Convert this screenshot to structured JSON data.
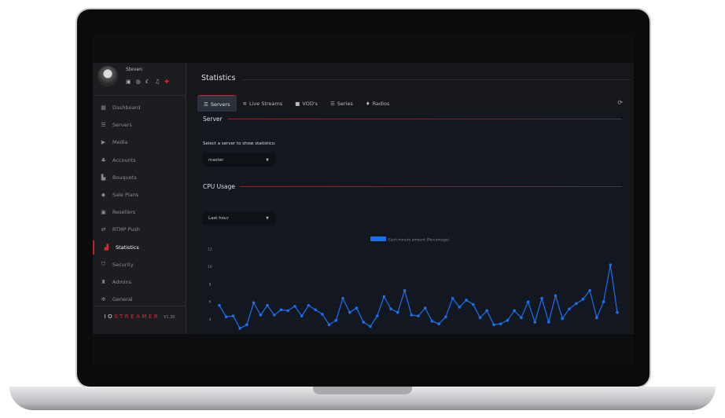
{
  "user": {
    "name": "Steven"
  },
  "header_icons": [
    "id-card-icon",
    "globe-icon",
    "moon-icon",
    "bell-icon",
    "pin-icon"
  ],
  "sidebar": {
    "items": [
      {
        "label": "Dashboard",
        "icon": "grid-icon"
      },
      {
        "label": "Servers",
        "icon": "server-icon"
      },
      {
        "label": "Media",
        "icon": "play-icon"
      },
      {
        "label": "Accounts",
        "icon": "users-icon"
      },
      {
        "label": "Bouquets",
        "icon": "boxes-icon"
      },
      {
        "label": "Sale Plans",
        "icon": "tags-icon"
      },
      {
        "label": "Resellers",
        "icon": "contact-icon"
      },
      {
        "label": "RTMP Push",
        "icon": "exchange-icon"
      },
      {
        "label": "Statistics",
        "icon": "chart-icon",
        "active": true
      },
      {
        "label": "Security",
        "icon": "shield-icon"
      },
      {
        "label": "Admins",
        "icon": "user-lock-icon"
      },
      {
        "label": "General",
        "icon": "gears-icon"
      }
    ]
  },
  "brand": {
    "io": "IO",
    "streamer": "STREAMER",
    "version": "V1.30"
  },
  "page": {
    "title": "Statistics"
  },
  "tabs": [
    {
      "label": "Servers",
      "icon": "list-icon",
      "active": true
    },
    {
      "label": "Live Streams",
      "icon": "rss-icon"
    },
    {
      "label": "VOD's",
      "icon": "video-icon"
    },
    {
      "label": "Series",
      "icon": "list-icon"
    },
    {
      "label": "Radios",
      "icon": "microphone-icon"
    }
  ],
  "server_section": {
    "title": "Server",
    "prompt": "Select a server to show statistics:",
    "selected": "master"
  },
  "cpu_section": {
    "title": "CPU Usage",
    "range": "Last hour"
  },
  "colors": {
    "accent": "#e0252b",
    "series": "#1a6ff0"
  },
  "chart_data": {
    "type": "line",
    "legend": "Each minute amount (Percentage)",
    "legend_position": "top",
    "ylim": [
      2,
      12
    ],
    "yticks": [
      2,
      4,
      6,
      8,
      10,
      12
    ],
    "grid": true,
    "series": [
      {
        "name": "Each minute amount (Percentage)",
        "values": [
          5.6,
          4.3,
          4.4,
          3.0,
          3.4,
          5.9,
          4.5,
          5.6,
          4.5,
          5.1,
          5.0,
          5.5,
          4.4,
          5.6,
          5.1,
          4.6,
          3.4,
          3.9,
          6.4,
          4.8,
          5.3,
          3.7,
          3.2,
          4.4,
          6.6,
          5.2,
          4.8,
          7.3,
          4.5,
          4.4,
          5.3,
          3.8,
          3.5,
          4.3,
          6.4,
          5.4,
          6.2,
          5.7,
          4.2,
          5.0,
          3.4,
          3.5,
          3.9,
          5.0,
          4.2,
          6.0,
          3.7,
          6.4,
          3.7,
          6.7,
          4.1,
          5.2,
          5.8,
          6.3,
          7.3,
          4.2,
          6.0,
          10.2,
          4.8
        ]
      }
    ]
  }
}
